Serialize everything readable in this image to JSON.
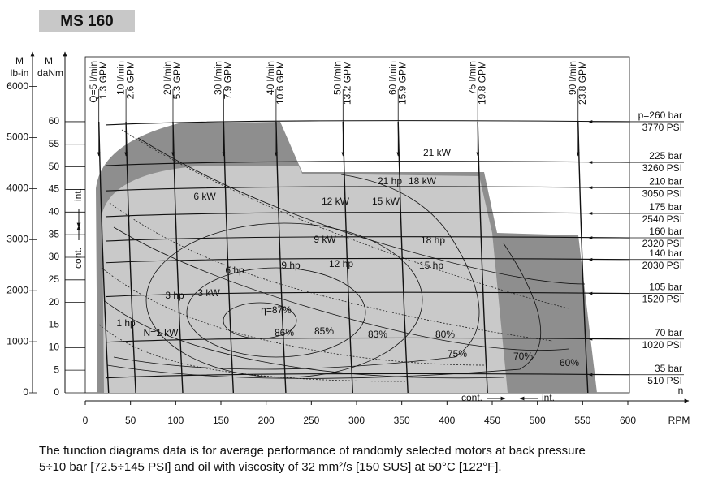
{
  "title": "MS 160",
  "chart_data": {
    "type": "function-diagram",
    "x_label": "n",
    "x_unit": "RPM",
    "xlim": [
      0,
      600
    ],
    "xticks": [
      0,
      50,
      100,
      150,
      200,
      250,
      300,
      350,
      400,
      450,
      500,
      550,
      600
    ],
    "y_label": "M",
    "y_unit": "daNm",
    "ylim": [
      0,
      74
    ],
    "yticks": [
      0,
      5,
      10,
      15,
      20,
      25,
      30,
      35,
      40,
      45,
      50,
      55,
      60
    ],
    "y2_label": "M",
    "y2_unit": "lb-in",
    "y2lim": [
      0,
      6550
    ],
    "y2ticks": [
      0,
      1000,
      2000,
      3000,
      4000,
      5000,
      6000
    ],
    "flow_lines": [
      {
        "lpm": "Q=5 l/min",
        "gpm": "1.3 GPM",
        "rpm": 15
      },
      {
        "lpm": "10 l/min",
        "gpm": "2.6 GPM",
        "rpm": 45
      },
      {
        "lpm": "20 l/min",
        "gpm": "5.3 GPM",
        "rpm": 97
      },
      {
        "lpm": "30 l/min",
        "gpm": "7.9 GPM",
        "rpm": 153
      },
      {
        "lpm": "40 l/min",
        "gpm": "10.6 GPM",
        "rpm": 211
      },
      {
        "lpm": "50 l/min",
        "gpm": "13.2 GPM",
        "rpm": 285
      },
      {
        "lpm": "60 l/min",
        "gpm": "15.9 GPM",
        "rpm": 346
      },
      {
        "lpm": "75 l/min",
        "gpm": "19.8 GPM",
        "rpm": 434
      },
      {
        "lpm": "90 l/min",
        "gpm": "23.8 GPM",
        "rpm": 545
      }
    ],
    "pressure_lines": [
      {
        "bar": "p=260 bar",
        "psi": "3770 PSI",
        "torque": 60
      },
      {
        "bar": "225 bar",
        "psi": "3260 PSI",
        "torque": 51
      },
      {
        "bar": "210 bar",
        "psi": "3050 PSI",
        "torque": 45.4
      },
      {
        "bar": "175 bar",
        "psi": "2540 PSI",
        "torque": 39.7
      },
      {
        "bar": "160 bar",
        "psi": "2320 PSI",
        "torque": 34.3
      },
      {
        "bar": "140 bar",
        "psi": "2030 PSI",
        "torque": 29.5
      },
      {
        "bar": "105 bar",
        "psi": "1520 PSI",
        "torque": 22
      },
      {
        "bar": "70 bar",
        "psi": "1020 PSI",
        "torque": 11.9
      },
      {
        "bar": "35 bar",
        "psi": "510 PSI",
        "torque": 4
      }
    ],
    "power_labels": [
      "21 kW",
      "21 hp",
      "18 kW",
      "12 kW",
      "15 kW",
      "6 kW",
      "9 kW",
      "18 hp",
      "9 hp",
      "12 hp",
      "15 hp",
      "6 hp",
      "3 hp",
      "3 kW",
      "1 hp",
      "N=1 kW"
    ],
    "efficiency_labels": [
      "η=87%",
      "86%",
      "85%",
      "83%",
      "80%",
      "75%",
      "70%",
      "60%"
    ],
    "int_label": "int.",
    "cont_label": "cont."
  },
  "note": [
    "The function diagrams data is for average performance of randomly selected motors at back pressure",
    "5÷10 bar [72.5÷145 PSI] and oil with viscosity of 32 mm²/s [150 SUS] at 50°C [122°F]."
  ]
}
